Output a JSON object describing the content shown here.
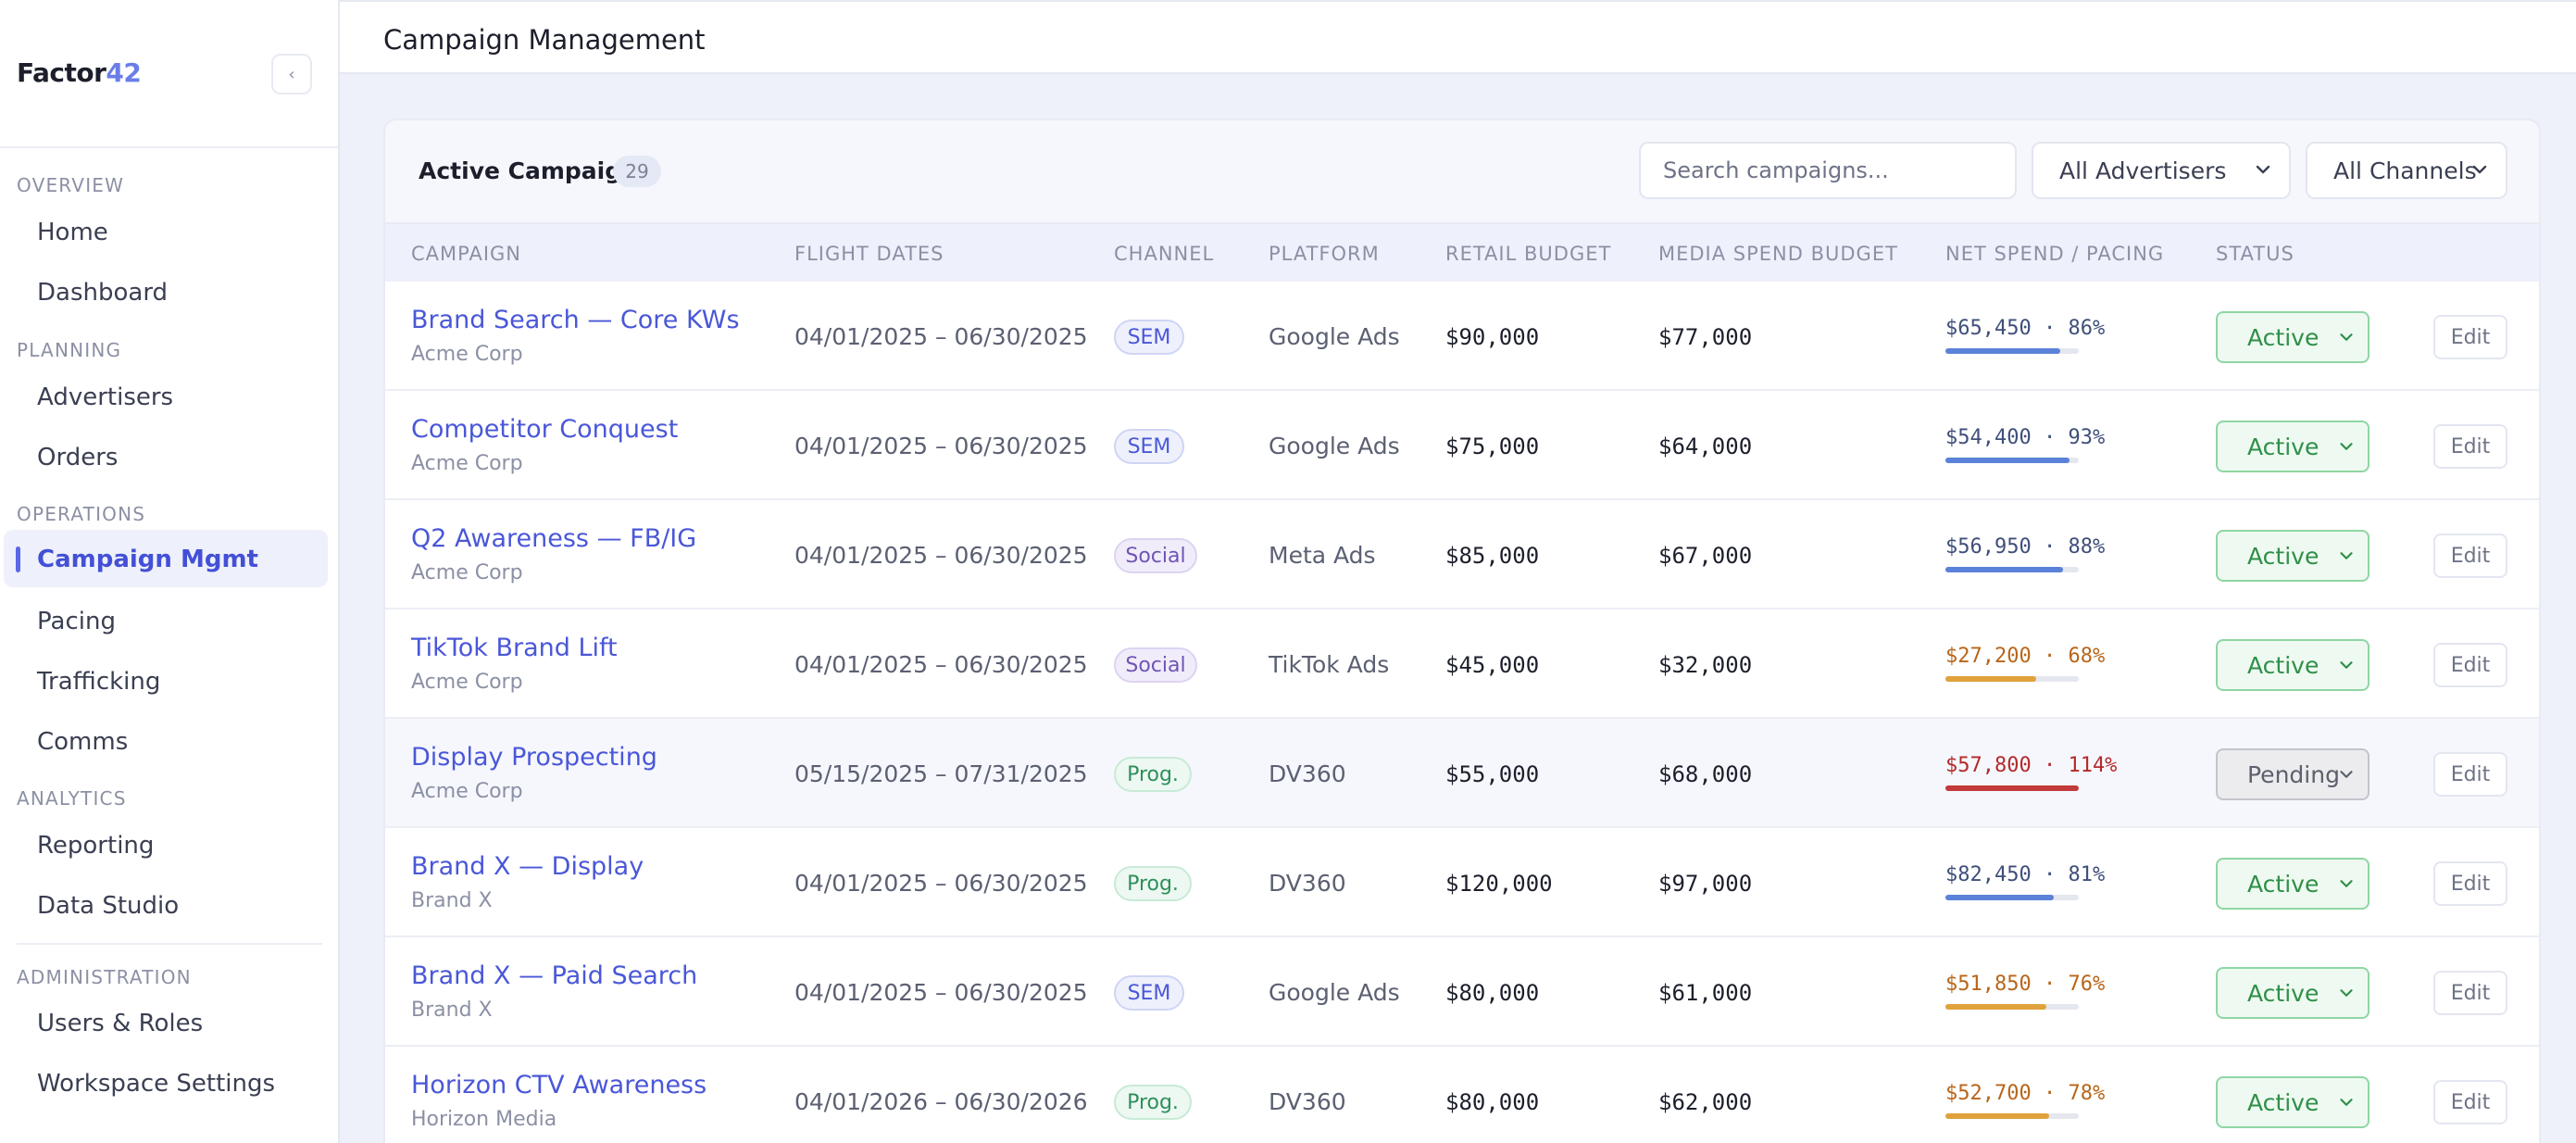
{
  "sidebar": {
    "brand_text": "Factor",
    "brand_num": "42",
    "collapse_glyph": "‹",
    "sections": [
      {
        "label": "OVERVIEW",
        "items": [
          "Home",
          "Dashboard"
        ]
      },
      {
        "label": "PLANNING",
        "items": [
          "Advertisers",
          "Orders"
        ]
      },
      {
        "label": "OPERATIONS",
        "items": [
          "Campaign Mgmt",
          "Pacing",
          "Trafficking",
          "Comms"
        ]
      },
      {
        "label": "ANALYTICS",
        "items": [
          "Reporting",
          "Data Studio"
        ]
      },
      {
        "label": "ADMINISTRATION",
        "items": [
          "Users & Roles",
          "Workspace Settings"
        ]
      }
    ],
    "active_item": "Campaign Mgmt"
  },
  "header": {
    "title": "Campaign Management"
  },
  "card": {
    "title": "Active Campaigns",
    "count": "29",
    "search_placeholder": "Search campaigns...",
    "advertiser_filter": "All Advertisers",
    "channel_filter": "All Channels"
  },
  "table": {
    "columns": [
      "CAMPAIGN",
      "FLIGHT DATES",
      "CHANNEL",
      "PLATFORM",
      "RETAIL BUDGET",
      "MEDIA SPEND BUDGET",
      "NET SPEND / PACING",
      "STATUS"
    ],
    "edit_label": "Edit",
    "rows": [
      {
        "name": "Brand Search — Core KWs",
        "advertiser": "Acme Corp",
        "dates": "04/01/2025 – 06/30/2025",
        "channel": "SEM",
        "platform": "Google Ads",
        "retail": "$90,000",
        "media": "$77,000",
        "pacing": "$65,450 · 86%",
        "pacing_pct": 86,
        "status": "Active"
      },
      {
        "name": "Competitor Conquest",
        "advertiser": "Acme Corp",
        "dates": "04/01/2025 – 06/30/2025",
        "channel": "SEM",
        "platform": "Google Ads",
        "retail": "$75,000",
        "media": "$64,000",
        "pacing": "$54,400 · 93%",
        "pacing_pct": 93,
        "status": "Active"
      },
      {
        "name": "Q2 Awareness — FB/IG",
        "advertiser": "Acme Corp",
        "dates": "04/01/2025 – 06/30/2025",
        "channel": "Social",
        "platform": "Meta Ads",
        "retail": "$85,000",
        "media": "$67,000",
        "pacing": "$56,950 · 88%",
        "pacing_pct": 88,
        "status": "Active"
      },
      {
        "name": "TikTok Brand Lift",
        "advertiser": "Acme Corp",
        "dates": "04/01/2025 – 06/30/2025",
        "channel": "Social",
        "platform": "TikTok Ads",
        "retail": "$45,000",
        "media": "$32,000",
        "pacing": "$27,200 · 68%",
        "pacing_pct": 68,
        "status": "Active"
      },
      {
        "name": "Display Prospecting",
        "advertiser": "Acme Corp",
        "dates": "05/15/2025 – 07/31/2025",
        "channel": "Prog.",
        "platform": "DV360",
        "retail": "$55,000",
        "media": "$68,000",
        "pacing": "$57,800 · 114%",
        "pacing_pct": 114,
        "status": "Pending"
      },
      {
        "name": "Brand X — Display",
        "advertiser": "Brand X",
        "dates": "04/01/2025 – 06/30/2025",
        "channel": "Prog.",
        "platform": "DV360",
        "retail": "$120,000",
        "media": "$97,000",
        "pacing": "$82,450 · 81%",
        "pacing_pct": 81,
        "status": "Active"
      },
      {
        "name": "Brand X — Paid Search",
        "advertiser": "Brand X",
        "dates": "04/01/2025 – 06/30/2025",
        "channel": "SEM",
        "platform": "Google Ads",
        "retail": "$80,000",
        "media": "$61,000",
        "pacing": "$51,850 · 76%",
        "pacing_pct": 76,
        "status": "Active"
      },
      {
        "name": "Horizon CTV Awareness",
        "advertiser": "Horizon Media",
        "dates": "04/01/2026 – 06/30/2026",
        "channel": "Prog.",
        "platform": "DV360",
        "retail": "$80,000",
        "media": "$62,000",
        "pacing": "$52,700 · 78%",
        "pacing_pct": 78,
        "status": "Active"
      }
    ]
  },
  "colors": {
    "accent": "#4a57d8",
    "pace_on_track": "#5b82d9",
    "pace_under": "#e0a23c",
    "pace_over": "#c23a3a",
    "pace_text_on_track": "#3f4f7a",
    "pace_text_under": "#b8661a",
    "pace_text_over": "#b42a2a"
  }
}
